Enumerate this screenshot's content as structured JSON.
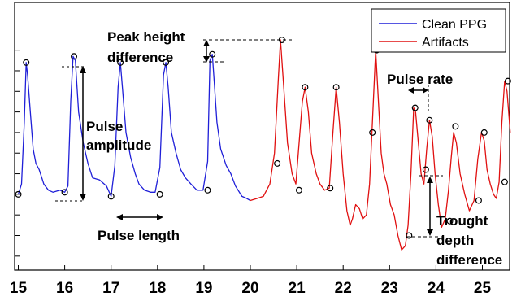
{
  "chart_data": {
    "type": "line",
    "title": "",
    "xlabel": "",
    "ylabel": "",
    "xlim": [
      15.0,
      25.6
    ],
    "ylim": [
      -0.1,
      1.0
    ],
    "x_ticks": [
      15,
      16,
      17,
      18,
      19,
      20,
      21,
      22,
      23,
      24,
      25
    ],
    "y_tick_labels_shown": false,
    "grid": false,
    "legend_position": "top-right",
    "colors": {
      "clean": "#1f1fd8",
      "artifacts": "#e01010"
    },
    "series": [
      {
        "name": "Clean PPG",
        "x": [
          15.0,
          15.07,
          15.13,
          15.17,
          15.2,
          15.26,
          15.32,
          15.38,
          15.45,
          15.55,
          15.65,
          15.75,
          15.9,
          16.0,
          16.07,
          16.13,
          16.18,
          16.23,
          16.3,
          16.4,
          16.5,
          16.6,
          16.75,
          16.9,
          17.0,
          17.08,
          17.15,
          17.2,
          17.25,
          17.32,
          17.42,
          17.52,
          17.6,
          17.72,
          17.85,
          17.95,
          18.05,
          18.13,
          18.18,
          18.23,
          18.3,
          18.4,
          18.5,
          18.6,
          18.72,
          18.85,
          18.98,
          19.08,
          19.13,
          19.18,
          19.22,
          19.28,
          19.36,
          19.48,
          19.58,
          19.68,
          19.82,
          19.92,
          20.0
        ],
        "y": [
          0.2,
          0.25,
          0.55,
          0.84,
          0.78,
          0.6,
          0.42,
          0.35,
          0.32,
          0.25,
          0.22,
          0.21,
          0.22,
          0.21,
          0.24,
          0.65,
          0.87,
          0.85,
          0.6,
          0.45,
          0.35,
          0.28,
          0.27,
          0.24,
          0.19,
          0.34,
          0.72,
          0.84,
          0.7,
          0.5,
          0.38,
          0.3,
          0.25,
          0.22,
          0.21,
          0.21,
          0.33,
          0.78,
          0.84,
          0.72,
          0.5,
          0.4,
          0.32,
          0.28,
          0.25,
          0.22,
          0.22,
          0.36,
          0.85,
          0.88,
          0.75,
          0.55,
          0.42,
          0.34,
          0.3,
          0.24,
          0.19,
          0.18,
          0.17
        ]
      },
      {
        "name": "Artifacts",
        "x": [
          20.0,
          20.15,
          20.28,
          20.42,
          20.52,
          20.6,
          20.65,
          20.72,
          20.8,
          20.9,
          20.98,
          21.05,
          21.12,
          21.18,
          21.25,
          21.32,
          21.42,
          21.5,
          21.6,
          21.7,
          21.78,
          21.85,
          21.92,
          22.0,
          22.08,
          22.15,
          22.2,
          22.27,
          22.35,
          22.42,
          22.5,
          22.57,
          22.63,
          22.7,
          22.76,
          22.82,
          22.88,
          22.94,
          23.02,
          23.1,
          23.18,
          23.26,
          23.34,
          23.4,
          23.46,
          23.52,
          23.56,
          23.62,
          23.68,
          23.74,
          23.8,
          23.86,
          23.92,
          23.98,
          24.05,
          24.12,
          24.2,
          24.27,
          24.33,
          24.38,
          24.44,
          24.52,
          24.62,
          24.72,
          24.82,
          24.9,
          24.98,
          25.04,
          25.1,
          25.17,
          25.24,
          25.3,
          25.36,
          25.42,
          25.48,
          25.53,
          25.6
        ],
        "y": [
          0.17,
          0.18,
          0.19,
          0.25,
          0.4,
          0.75,
          0.95,
          0.72,
          0.45,
          0.3,
          0.25,
          0.45,
          0.65,
          0.72,
          0.6,
          0.4,
          0.3,
          0.25,
          0.22,
          0.23,
          0.5,
          0.72,
          0.55,
          0.3,
          0.12,
          0.05,
          0.08,
          0.15,
          0.13,
          0.08,
          0.1,
          0.25,
          0.55,
          0.9,
          0.65,
          0.4,
          0.3,
          0.25,
          0.15,
          0.1,
          0.0,
          -0.07,
          -0.05,
          0.05,
          0.3,
          0.62,
          0.6,
          0.45,
          0.3,
          0.25,
          0.42,
          0.56,
          0.48,
          0.3,
          0.15,
          0.04,
          0.08,
          0.22,
          0.38,
          0.5,
          0.45,
          0.3,
          0.2,
          0.12,
          0.17,
          0.37,
          0.5,
          0.46,
          0.32,
          0.25,
          0.2,
          0.18,
          0.26,
          0.55,
          0.75,
          0.7,
          0.5
        ]
      }
    ],
    "markers": [
      {
        "x": 15.0,
        "y": 0.2
      },
      {
        "x": 15.17,
        "y": 0.84
      },
      {
        "x": 16.0,
        "y": 0.21
      },
      {
        "x": 16.2,
        "y": 0.87
      },
      {
        "x": 17.0,
        "y": 0.19
      },
      {
        "x": 17.2,
        "y": 0.84
      },
      {
        "x": 18.05,
        "y": 0.2
      },
      {
        "x": 18.18,
        "y": 0.84
      },
      {
        "x": 19.08,
        "y": 0.22
      },
      {
        "x": 19.18,
        "y": 0.88
      },
      {
        "x": 20.58,
        "y": 0.35
      },
      {
        "x": 20.68,
        "y": 0.95
      },
      {
        "x": 21.05,
        "y": 0.22
      },
      {
        "x": 21.18,
        "y": 0.72
      },
      {
        "x": 21.72,
        "y": 0.23
      },
      {
        "x": 21.85,
        "y": 0.72
      },
      {
        "x": 22.63,
        "y": 0.5
      },
      {
        "x": 22.72,
        "y": 0.9
      },
      {
        "x": 23.42,
        "y": 0.0
      },
      {
        "x": 23.55,
        "y": 0.62
      },
      {
        "x": 23.78,
        "y": 0.32
      },
      {
        "x": 23.86,
        "y": 0.56
      },
      {
        "x": 24.3,
        "y": 0.07
      },
      {
        "x": 24.42,
        "y": 0.53
      },
      {
        "x": 24.92,
        "y": 0.17
      },
      {
        "x": 25.04,
        "y": 0.5
      },
      {
        "x": 25.48,
        "y": 0.26
      },
      {
        "x": 25.55,
        "y": 0.75
      }
    ],
    "annotations": {
      "pulse_amplitude": [
        "Pulse",
        "amplitude"
      ],
      "peak_height_difference": [
        "Peak height",
        "difference"
      ],
      "pulse_length": "Pulse length",
      "pulse_rate": "Pulse rate",
      "trough_depth_difference": [
        "Trought",
        "depth",
        "difference"
      ]
    }
  }
}
